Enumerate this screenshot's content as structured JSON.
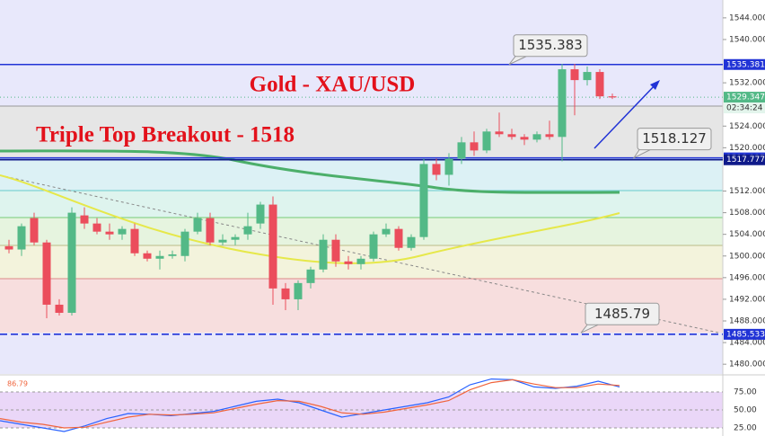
{
  "chart_data": [
    {
      "type": "candlestick",
      "title": "Gold - XAU/USD",
      "annotations": [
        "Triple Top Breakout - 1518"
      ],
      "up_color": "#53b987",
      "down_color": "#eb4d5c",
      "ylim": [
        1478.2,
        1547.3
      ],
      "yticks": [
        {
          "value": 1544,
          "label": "1544.000"
        },
        {
          "value": 1540,
          "label": "1540.000"
        },
        {
          "value": 1532,
          "label": "1532.000"
        },
        {
          "value": 1524,
          "label": "1524.000"
        },
        {
          "value": 1520,
          "label": "1520.000"
        },
        {
          "value": 1512,
          "label": "1512.000"
        },
        {
          "value": 1508,
          "label": "1508.000"
        },
        {
          "value": 1504,
          "label": "1504.000"
        },
        {
          "value": 1500,
          "label": "1500.000"
        },
        {
          "value": 1496,
          "label": "1496.000"
        },
        {
          "value": 1492,
          "label": "1492.000"
        },
        {
          "value": 1488,
          "label": "1488.000"
        },
        {
          "value": 1484,
          "label": "1484.000"
        },
        {
          "value": 1480,
          "label": "1480.000"
        }
      ],
      "open": [
        1501.8,
        1501.2,
        1507,
        1502.5,
        1491,
        1489.5,
        1507.5,
        1506,
        1504.5,
        1504,
        1505,
        1500.5,
        1499.5,
        1500,
        1500,
        1504.5,
        1507,
        1502.5,
        1503,
        1504,
        1506,
        1509.5,
        1494,
        1492,
        1495,
        1497.5,
        1503,
        1499,
        1498.5,
        1499.5,
        1504,
        1505,
        1501.5,
        1503.5,
        1517,
        1515,
        1518,
        1521,
        1519.5,
        1523,
        1522.5,
        1522,
        1521.5,
        1522.5,
        1522,
        1534.5,
        1532.5,
        1534,
        1529.5
      ],
      "high": [
        1503,
        1506,
        1508,
        1503,
        1492,
        1509,
        1509,
        1507,
        1506,
        1505.5,
        1506,
        1501,
        1501,
        1501,
        1505,
        1508,
        1508,
        1504,
        1504,
        1508,
        1510,
        1511,
        1495,
        1495.5,
        1498,
        1504,
        1504,
        1500,
        1500,
        1504.5,
        1506,
        1505.5,
        1504,
        1518,
        1518,
        1519,
        1522,
        1523,
        1523.5,
        1526.5,
        1523.5,
        1522.5,
        1523,
        1525,
        1535.5,
        1535.5,
        1535,
        1534.5,
        1530
      ],
      "low": [
        1500.5,
        1500,
        1502,
        1488.5,
        1489,
        1489,
        1505,
        1504,
        1503,
        1503,
        1500,
        1499,
        1497.5,
        1499.5,
        1499,
        1504,
        1502,
        1502,
        1502,
        1503,
        1505,
        1491,
        1490,
        1490,
        1494,
        1497,
        1498,
        1497.5,
        1497.5,
        1499,
        1503.5,
        1501,
        1501,
        1503,
        1514,
        1513,
        1517,
        1518.5,
        1519,
        1522,
        1521.5,
        1520.5,
        1521,
        1521.5,
        1517.5,
        1526,
        1531.5,
        1529,
        1529
      ],
      "close": [
        1501.2,
        1505.5,
        1502.5,
        1491,
        1489.5,
        1508,
        1506,
        1504.5,
        1504,
        1505,
        1500.5,
        1499.5,
        1500,
        1500.3,
        1504.5,
        1507,
        1502.5,
        1503,
        1503.5,
        1505.5,
        1509.5,
        1494,
        1492,
        1495,
        1497.5,
        1503,
        1499,
        1498.5,
        1499.5,
        1504,
        1505,
        1501.5,
        1503.5,
        1517,
        1515,
        1518,
        1521,
        1519.5,
        1523,
        1522.5,
        1522,
        1521.5,
        1522.5,
        1522,
        1534.5,
        1532.5,
        1534,
        1529.5,
        1529.3
      ],
      "price_tags": [
        {
          "value": 1535.381,
          "color": "#2133d6",
          "style": "solid"
        },
        {
          "value": 1529.347,
          "color": "#53b987",
          "style": "dotted",
          "countdown": "02:34:24"
        },
        {
          "value": 1518.127,
          "color": "#2133d6",
          "style": "solid"
        },
        {
          "value": 1517.777,
          "color": "#0f1a8a",
          "style": "solid"
        },
        {
          "value": 1485.533,
          "color": "#2133d6",
          "style": "dashed"
        }
      ],
      "callouts": [
        {
          "value": 1535.383
        },
        {
          "value": 1518.127
        },
        {
          "value": 1485.79
        }
      ]
    },
    {
      "type": "line",
      "legend_value": "86.79",
      "ylim": [
        13.75,
        97.5
      ],
      "yticks": [
        {
          "value": 75,
          "label": "75.00"
        },
        {
          "value": 50,
          "label": "50.00"
        },
        {
          "value": 25,
          "label": "25.00"
        }
      ],
      "series": [
        {
          "color": "#2962ff",
          "values": [
            35,
            30,
            25,
            20,
            28,
            38,
            45,
            44,
            42,
            45,
            48,
            55,
            62,
            65,
            60,
            50,
            40,
            45,
            50,
            55,
            60,
            68,
            85,
            93,
            92,
            82,
            80,
            83,
            90,
            82
          ]
        },
        {
          "color": "#f0643c",
          "values": [
            38,
            33,
            30,
            25,
            26,
            33,
            40,
            44,
            43,
            44,
            46,
            52,
            58,
            63,
            62,
            55,
            46,
            44,
            47,
            52,
            57,
            63,
            78,
            88,
            92,
            86,
            81,
            81,
            86,
            84
          ]
        }
      ]
    }
  ]
}
